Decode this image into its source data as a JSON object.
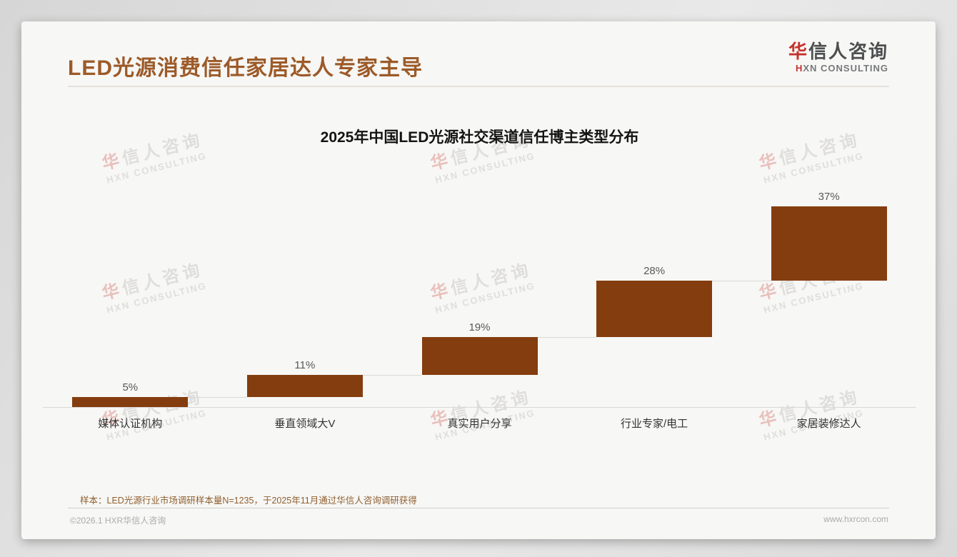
{
  "page": {
    "title": "LED光源消费信任家居达人专家主导",
    "logo": {
      "brand_first_char": "华",
      "brand_rest": "信人咨询",
      "subtitle_first_char": "H",
      "subtitle_rest": "XN CONSULTING"
    },
    "watermark": {
      "line1_first_char": "华",
      "line1_rest": "信人咨询",
      "line2": "HXN CONSULTING"
    },
    "footer": {
      "sample_note": "样本：LED光源行业市场调研样本量N=1235，于2025年11月通过华信人咨询调研获得",
      "copyright": "©2026.1 HXR华信人咨询",
      "website": "www.hxrcon.com"
    }
  },
  "chart_data": {
    "type": "bar",
    "subtype": "waterfall-step",
    "title": "2025年中国LED光源社交渠道信任博主类型分布",
    "categories": [
      "媒体认证机构",
      "垂直领域大V",
      "真实用户分享",
      "行业专家/电工",
      "家居装修达人"
    ],
    "values": [
      5,
      11,
      19,
      28,
      37
    ],
    "value_labels": [
      "5%",
      "11%",
      "19%",
      "28%",
      "37%"
    ],
    "unit": "%",
    "ylim": [
      0,
      100
    ],
    "cumulative": true,
    "bar_color": "#843d0e",
    "value_label_color": "#595959",
    "axis_color": "#d9d9d9",
    "grid": false,
    "legend": false,
    "x_axis_visible": true,
    "y_axis_visible": false
  }
}
